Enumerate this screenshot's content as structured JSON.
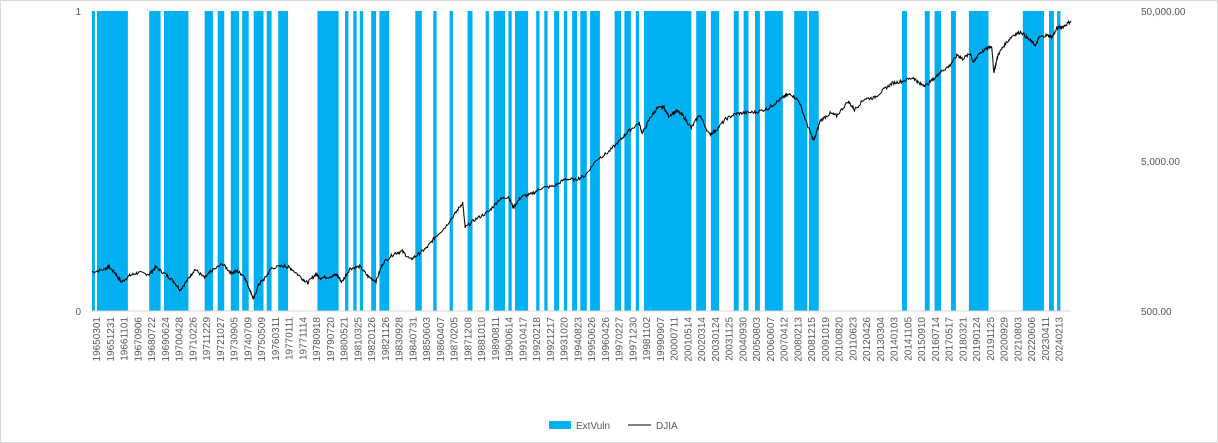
{
  "chart_data": {
    "type": "bar+line",
    "title": "",
    "xlabel": "",
    "ylabel_left": "",
    "ylabel_right": "",
    "left_axis": {
      "ylim": [
        0,
        1
      ],
      "tick_labels": [
        "0",
        "1"
      ]
    },
    "right_axis": {
      "scale": "log",
      "ylim": [
        500,
        50000
      ],
      "tick_labels": [
        "500.00",
        "5,000.00",
        "50,000.00"
      ]
    },
    "x_tick_labels": [
      "19650301",
      "19651231",
      "19661101",
      "19670906",
      "19680722",
      "19690624",
      "19700428",
      "19710226",
      "19711229",
      "19721027",
      "19730905",
      "19740709",
      "19750509",
      "19760311",
      "19770111",
      "19771114",
      "19780918",
      "19790720",
      "19800521",
      "19810325",
      "19820126",
      "19821126",
      "19830928",
      "19840731",
      "19850603",
      "19860407",
      "19870205",
      "19871208",
      "19881010",
      "19890811",
      "19900614",
      "19910417",
      "19920218",
      "19921217",
      "19931020",
      "19940823",
      "19950626",
      "19960426",
      "19970227",
      "19971230",
      "19981102",
      "19990907",
      "20000711",
      "20010514",
      "20020314",
      "20030124",
      "20031125",
      "20040930",
      "20050803",
      "20060607",
      "20070412",
      "20080213",
      "20081215",
      "20091019",
      "20100820",
      "20110623",
      "20120426",
      "20130304",
      "20140103",
      "20141105",
      "20150910",
      "20160714",
      "20170517",
      "20180321",
      "20190124",
      "20191125",
      "20200929",
      "20210803",
      "20220606",
      "20230411",
      "20240213"
    ],
    "x_range": [
      1965.0,
      2024.95
    ],
    "series": [
      {
        "name": "ExtVuln",
        "kind": "bar",
        "color": "#00b0f0",
        "value": 1,
        "periods": [
          [
            1965.0,
            1965.18
          ],
          [
            1965.3,
            1967.2
          ],
          [
            1968.5,
            1969.2
          ],
          [
            1969.4,
            1970.9
          ],
          [
            1971.9,
            1972.4
          ],
          [
            1972.7,
            1973.1
          ],
          [
            1973.5,
            1974.0
          ],
          [
            1974.2,
            1974.6
          ],
          [
            1974.9,
            1975.5
          ],
          [
            1975.7,
            1976.0
          ],
          [
            1976.4,
            1977.0
          ],
          [
            1978.8,
            1980.1
          ],
          [
            1980.5,
            1980.7
          ],
          [
            1981.0,
            1981.2
          ],
          [
            1981.4,
            1981.6
          ],
          [
            1982.1,
            1982.4
          ],
          [
            1982.6,
            1983.2
          ],
          [
            1984.8,
            1985.2
          ],
          [
            1985.9,
            1986.1
          ],
          [
            1986.9,
            1987.1
          ],
          [
            1988.0,
            1988.3
          ],
          [
            1989.1,
            1989.3
          ],
          [
            1989.6,
            1990.3
          ],
          [
            1990.5,
            1990.7
          ],
          [
            1990.9,
            1991.7
          ],
          [
            1992.2,
            1992.4
          ],
          [
            1992.7,
            1992.9
          ],
          [
            1993.3,
            1993.6
          ],
          [
            1993.9,
            1994.1
          ],
          [
            1994.4,
            1994.7
          ],
          [
            1994.9,
            1995.3
          ],
          [
            1995.5,
            1996.1
          ],
          [
            1997.0,
            1997.4
          ],
          [
            1997.6,
            1998.0
          ],
          [
            1998.3,
            1998.5
          ],
          [
            1998.8,
            2001.7
          ],
          [
            2002.0,
            2002.6
          ],
          [
            2002.9,
            2003.4
          ],
          [
            2004.3,
            2004.6
          ],
          [
            2004.9,
            2005.2
          ],
          [
            2005.6,
            2005.9
          ],
          [
            2006.2,
            2007.3
          ],
          [
            2008.0,
            2008.8
          ],
          [
            2008.9,
            2009.5
          ],
          [
            2014.6,
            2014.9
          ],
          [
            2016.0,
            2016.3
          ],
          [
            2016.6,
            2017.0
          ],
          [
            2017.6,
            2017.9
          ],
          [
            2018.7,
            2019.9
          ],
          [
            2022.0,
            2023.3
          ],
          [
            2023.6,
            2023.9
          ],
          [
            2024.1,
            2024.3
          ]
        ]
      },
      {
        "name": "DJIA",
        "kind": "line",
        "axis": "right",
        "color": "#000000",
        "points": [
          [
            1965.0,
            910
          ],
          [
            1965.8,
            950
          ],
          [
            1966.0,
            990
          ],
          [
            1966.4,
            900
          ],
          [
            1966.8,
            780
          ],
          [
            1967.3,
            860
          ],
          [
            1967.8,
            900
          ],
          [
            1968.5,
            880
          ],
          [
            1968.9,
            980
          ],
          [
            1969.5,
            880
          ],
          [
            1970.0,
            790
          ],
          [
            1970.4,
            690
          ],
          [
            1970.9,
            820
          ],
          [
            1971.3,
            950
          ],
          [
            1971.9,
            830
          ],
          [
            1972.3,
            920
          ],
          [
            1973.0,
            1030
          ],
          [
            1973.5,
            900
          ],
          [
            1973.9,
            920
          ],
          [
            1974.3,
            860
          ],
          [
            1974.7,
            680
          ],
          [
            1974.9,
            600
          ],
          [
            1975.2,
            750
          ],
          [
            1975.6,
            830
          ],
          [
            1976.0,
            970
          ],
          [
            1976.8,
            1000
          ],
          [
            1977.2,
            960
          ],
          [
            1977.9,
            820
          ],
          [
            1978.2,
            770
          ],
          [
            1978.7,
            880
          ],
          [
            1979.0,
            830
          ],
          [
            1979.6,
            850
          ],
          [
            1980.0,
            870
          ],
          [
            1980.3,
            780
          ],
          [
            1980.8,
            960
          ],
          [
            1981.4,
            990
          ],
          [
            1981.9,
            850
          ],
          [
            1982.4,
            790
          ],
          [
            1982.8,
            1040
          ],
          [
            1983.5,
            1210
          ],
          [
            1984.0,
            1250
          ],
          [
            1984.5,
            1100
          ],
          [
            1985.0,
            1200
          ],
          [
            1985.5,
            1320
          ],
          [
            1986.0,
            1550
          ],
          [
            1986.6,
            1800
          ],
          [
            1987.2,
            2200
          ],
          [
            1987.7,
            2650
          ],
          [
            1987.85,
            1800
          ],
          [
            1988.5,
            2050
          ],
          [
            1989.3,
            2300
          ],
          [
            1989.9,
            2750
          ],
          [
            1990.5,
            2900
          ],
          [
            1990.8,
            2450
          ],
          [
            1991.3,
            2900
          ],
          [
            1991.9,
            3000
          ],
          [
            1992.5,
            3300
          ],
          [
            1993.3,
            3400
          ],
          [
            1994.0,
            3800
          ],
          [
            1994.6,
            3750
          ],
          [
            1995.2,
            4000
          ],
          [
            1995.9,
            5100
          ],
          [
            1996.6,
            5700
          ],
          [
            1997.3,
            6800
          ],
          [
            1997.8,
            7800
          ],
          [
            1998.5,
            9000
          ],
          [
            1998.7,
            7600
          ],
          [
            1999.2,
            9800
          ],
          [
            1999.6,
            11200
          ],
          [
            2000.0,
            11500
          ],
          [
            2000.3,
            10000
          ],
          [
            2000.8,
            10800
          ],
          [
            2001.2,
            10000
          ],
          [
            2001.7,
            8300
          ],
          [
            2002.2,
            10200
          ],
          [
            2002.8,
            7500
          ],
          [
            2003.2,
            8000
          ],
          [
            2003.8,
            9500
          ],
          [
            2004.4,
            10300
          ],
          [
            2005.0,
            10500
          ],
          [
            2005.7,
            10600
          ],
          [
            2006.4,
            11200
          ],
          [
            2006.9,
            12300
          ],
          [
            2007.4,
            13500
          ],
          [
            2007.8,
            14000
          ],
          [
            2008.3,
            12500
          ],
          [
            2008.8,
            8700
          ],
          [
            2009.2,
            6800
          ],
          [
            2009.6,
            9300
          ],
          [
            2010.2,
            10400
          ],
          [
            2010.6,
            10000
          ],
          [
            2011.3,
            12500
          ],
          [
            2011.7,
            11000
          ],
          [
            2012.3,
            13000
          ],
          [
            2012.9,
            13200
          ],
          [
            2013.5,
            15000
          ],
          [
            2014.0,
            16500
          ],
          [
            2014.6,
            17000
          ],
          [
            2015.3,
            18000
          ],
          [
            2015.7,
            16300
          ],
          [
            2016.1,
            16000
          ],
          [
            2016.7,
            18300
          ],
          [
            2017.0,
            19800
          ],
          [
            2017.5,
            21500
          ],
          [
            2018.0,
            25500
          ],
          [
            2018.3,
            24000
          ],
          [
            2018.8,
            26000
          ],
          [
            2018.97,
            22500
          ],
          [
            2019.3,
            26000
          ],
          [
            2019.9,
            28500
          ],
          [
            2020.1,
            29000
          ],
          [
            2020.22,
            19500
          ],
          [
            2020.5,
            25800
          ],
          [
            2020.9,
            30000
          ],
          [
            2021.4,
            34500
          ],
          [
            2021.9,
            36300
          ],
          [
            2022.4,
            32000
          ],
          [
            2022.8,
            29500
          ],
          [
            2023.0,
            33500
          ],
          [
            2023.5,
            34500
          ],
          [
            2023.8,
            33500
          ],
          [
            2024.1,
            38500
          ],
          [
            2024.5,
            39500
          ],
          [
            2024.95,
            43000
          ]
        ]
      }
    ],
    "legend": {
      "position": "bottom",
      "entries": [
        "ExtVuln",
        "DJIA"
      ]
    },
    "grid": false
  }
}
